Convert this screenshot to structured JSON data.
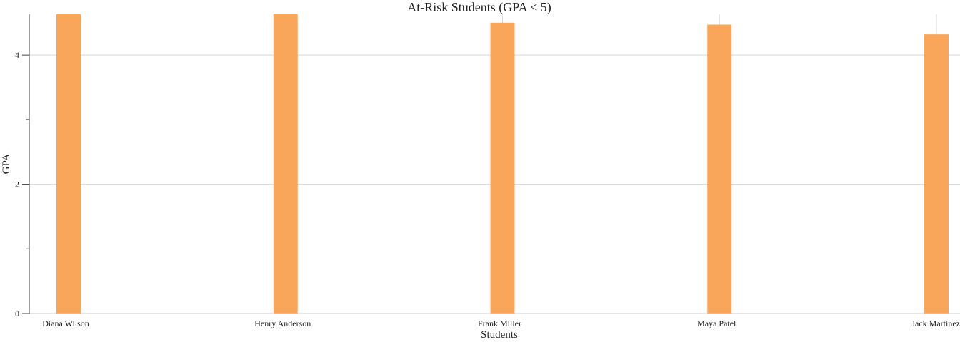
{
  "chart_data": {
    "type": "bar",
    "title": "At-Risk Students (GPA < 5)",
    "xlabel": "Students",
    "ylabel": "GPA",
    "categories": [
      "Diana Wilson",
      "Henry Anderson",
      "Frank Miller",
      "Maya Patel",
      "Jack Martinez"
    ],
    "values": [
      4.63,
      4.63,
      4.5,
      4.47,
      4.32
    ],
    "ylim": [
      0,
      4.63
    ],
    "yticks": [
      0,
      2,
      4
    ],
    "y_tick_labels": [
      "0",
      "2",
      "4"
    ],
    "bar_color": "#f9a65a",
    "grid": true,
    "legend": "none"
  }
}
